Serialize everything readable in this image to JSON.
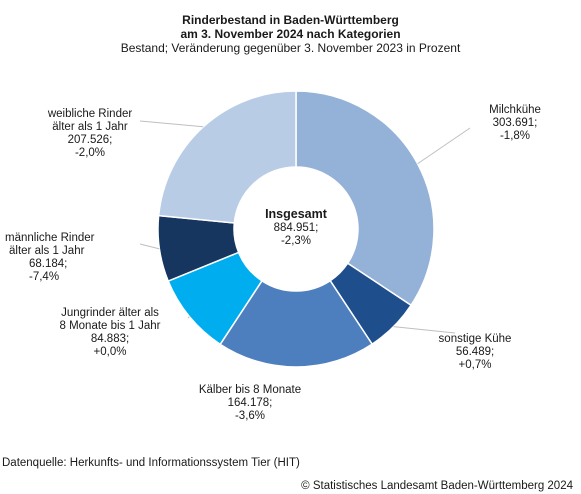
{
  "chart_data": {
    "type": "pie",
    "title_lines": [
      "Rinderbestand in Baden-Württemberg",
      "am 3. November 2024 nach Kategorien"
    ],
    "subtitle": "Bestand; Veränderung gegenüber 3. November 2023 in Prozent",
    "total": {
      "label": "Insgesamt",
      "value": "884.951;",
      "change": "-2,3%"
    },
    "slices": [
      {
        "name_lines": [
          "Milchkühe"
        ],
        "value": 303691,
        "value_text": "303.691;",
        "change": "-1,8%",
        "color": "#94b1d8"
      },
      {
        "name_lines": [
          "sonstige Kühe"
        ],
        "value": 56489,
        "value_text": "56.489;",
        "change": "+0,7%",
        "color": "#1f4e8c"
      },
      {
        "name_lines": [
          "Kälber bis 8 Monate"
        ],
        "value": 164178,
        "value_text": "164.178;",
        "change": "-3,6%",
        "color": "#4d7fbf"
      },
      {
        "name_lines": [
          "Jungrinder älter als",
          "8 Monate bis 1 Jahr"
        ],
        "value": 84883,
        "value_text": "84.883;",
        "change": "+0,0%",
        "color": "#00aeef"
      },
      {
        "name_lines": [
          "männliche Rinder",
          "älter als 1 Jahr"
        ],
        "value": 68184,
        "value_text": "68.184;",
        "change": "-7,4%",
        "color": "#16355f"
      },
      {
        "name_lines": [
          "weibliche Rinder",
          "älter als 1 Jahr"
        ],
        "value": 207526,
        "value_text": "207.526;",
        "change": "-2,0%",
        "color": "#b8cce6"
      }
    ]
  },
  "footer": {
    "source": "Datenquelle: Herkunfts- und Informationssystem Tier (HIT)",
    "copyright": "© Statistisches Landesamt Baden-Württemberg 2024"
  }
}
